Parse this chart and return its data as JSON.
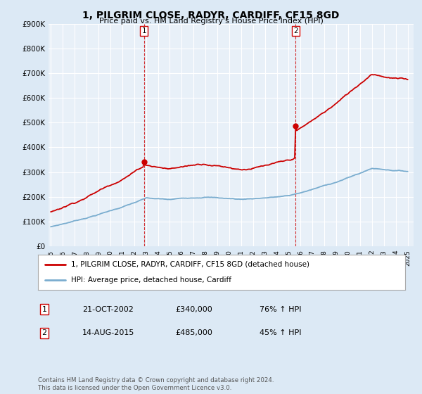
{
  "title": "1, PILGRIM CLOSE, RADYR, CARDIFF, CF15 8GD",
  "subtitle": "Price paid vs. HM Land Registry's House Price Index (HPI)",
  "background_color": "#dce9f5",
  "plot_bg_color": "#e8f0f8",
  "grid_color": "#ffffff",
  "red_line_color": "#cc0000",
  "blue_line_color": "#7aadcf",
  "purchase1_year": 2002.81,
  "purchase1_price": 340000,
  "purchase2_year": 2015.62,
  "purchase2_price": 485000,
  "x_start_year": 1995,
  "x_end_year": 2025,
  "ylim": [
    0,
    900000
  ],
  "yticks": [
    0,
    100000,
    200000,
    300000,
    400000,
    500000,
    600000,
    700000,
    800000,
    900000
  ],
  "ytick_labels": [
    "£0",
    "£100K",
    "£200K",
    "£300K",
    "£400K",
    "£500K",
    "£600K",
    "£700K",
    "£800K",
    "£900K"
  ],
  "legend_line1": "1, PILGRIM CLOSE, RADYR, CARDIFF, CF15 8GD (detached house)",
  "legend_line2": "HPI: Average price, detached house, Cardiff",
  "footnote": "Contains HM Land Registry data © Crown copyright and database right 2024.\nThis data is licensed under the Open Government Licence v3.0.",
  "table_rows": [
    {
      "num": "1",
      "date": "21-OCT-2002",
      "price": "£340,000",
      "pct": "76% ↑ HPI"
    },
    {
      "num": "2",
      "date": "14-AUG-2015",
      "price": "£485,000",
      "pct": "45% ↑ HPI"
    }
  ]
}
